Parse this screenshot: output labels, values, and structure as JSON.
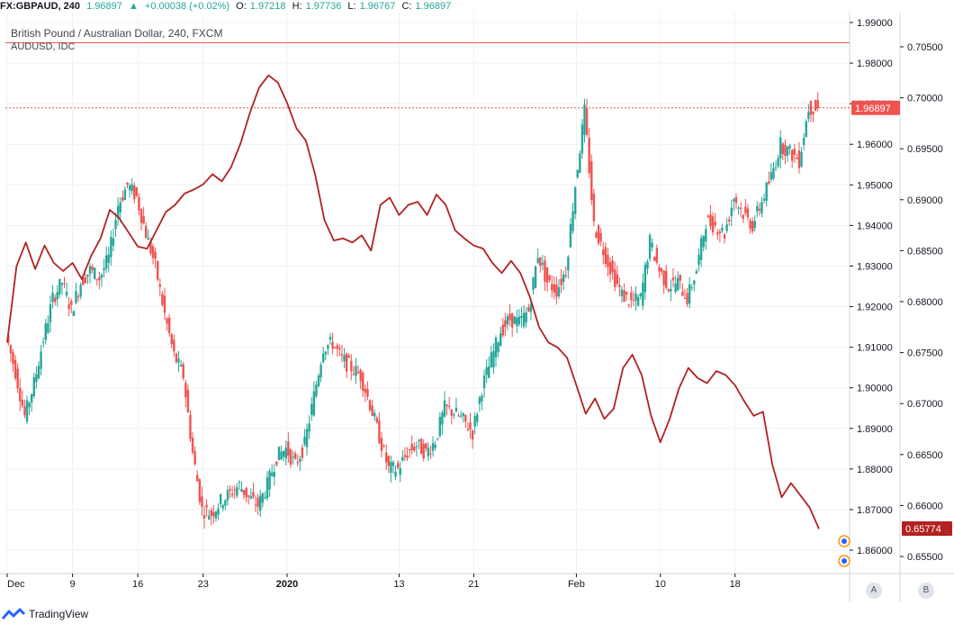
{
  "header": {
    "symbol": "FX:GBPAUD, 240",
    "last": "1.96897",
    "change_icon": "triangle-up-icon",
    "change": "+0.00038 (+0.02%)",
    "o_label": "O:",
    "o_value": "1.97218",
    "h_label": "H:",
    "h_value": "1.97736",
    "l_label": "L:",
    "l_value": "1.96767",
    "c_label": "C:",
    "c_value": "1.96897"
  },
  "legend": {
    "main_series": "British Pound / Australian Dollar, 240, FXCM",
    "overlay_series": "AUDUSD, IDC"
  },
  "footer": {
    "brand": "TradingView",
    "brand_icon": "tradingview-logo-icon"
  },
  "axis_buttons": {
    "auto": "A",
    "both": "B"
  },
  "colors": {
    "up": "#26a69a",
    "down": "#ef5350",
    "overlay": "#b22222",
    "price_tag": "#ef5350",
    "overlay_tag": "#b22222"
  },
  "chart_data": {
    "type": "candlestick",
    "x_tick_labels": [
      "Dec",
      "9",
      "16",
      "23",
      "2020",
      "13",
      "21",
      "Feb",
      "10",
      "18"
    ],
    "x_tick_dates": [
      "2019-12-02",
      "2019-12-09",
      "2019-12-16",
      "2019-12-23",
      "2020-01-01",
      "2020-01-13",
      "2020-01-21",
      "2020-02-01",
      "2020-02-10",
      "2020-02-18"
    ],
    "right_axis_ticks": [
      "1.99000",
      "1.98000",
      "1.97000",
      "1.96000",
      "1.95000",
      "1.94000",
      "1.93000",
      "1.92000",
      "1.91000",
      "1.90000",
      "1.89000",
      "1.88000",
      "1.87000",
      "1.86000"
    ],
    "right_axis_ticks_2": [
      "0.70500",
      "0.70000",
      "0.69500",
      "0.69000",
      "0.68500",
      "0.68000",
      "0.67500",
      "0.67000",
      "0.66500",
      "0.66000",
      "0.65500"
    ],
    "last_price_label": "1.96897",
    "overlay_last_label": "0.65774",
    "gbpaud_ylim": [
      1.855,
      1.995
    ],
    "audusd_ylim": [
      0.652,
      0.7075
    ],
    "gbpaud_series": [
      {
        "x": "2019-12-02",
        "y": 1.913
      },
      {
        "x": "2019-12-03",
        "y": 1.904
      },
      {
        "x": "2019-12-04",
        "y": 1.893
      },
      {
        "x": "2019-12-05",
        "y": 1.901
      },
      {
        "x": "2019-12-06",
        "y": 1.912
      },
      {
        "x": "2019-12-07",
        "y": 1.922
      },
      {
        "x": "2019-12-08",
        "y": 1.926
      },
      {
        "x": "2019-12-09",
        "y": 1.919
      },
      {
        "x": "2019-12-10",
        "y": 1.926
      },
      {
        "x": "2019-12-11",
        "y": 1.929
      },
      {
        "x": "2019-12-12",
        "y": 1.927
      },
      {
        "x": "2019-12-13",
        "y": 1.932
      },
      {
        "x": "2019-12-14",
        "y": 1.945
      },
      {
        "x": "2019-12-15",
        "y": 1.95
      },
      {
        "x": "2019-12-16",
        "y": 1.947
      },
      {
        "x": "2019-12-17",
        "y": 1.938
      },
      {
        "x": "2019-12-18",
        "y": 1.93
      },
      {
        "x": "2019-12-19",
        "y": 1.918
      },
      {
        "x": "2019-12-20",
        "y": 1.908
      },
      {
        "x": "2019-12-21",
        "y": 1.903
      },
      {
        "x": "2019-12-22",
        "y": 1.884
      },
      {
        "x": "2019-12-23",
        "y": 1.87
      },
      {
        "x": "2019-12-24",
        "y": 1.869
      },
      {
        "x": "2019-12-25",
        "y": 1.872
      },
      {
        "x": "2019-12-26",
        "y": 1.874
      },
      {
        "x": "2019-12-27",
        "y": 1.876
      },
      {
        "x": "2019-12-28",
        "y": 1.873
      },
      {
        "x": "2019-12-29",
        "y": 1.871
      },
      {
        "x": "2019-12-30",
        "y": 1.876
      },
      {
        "x": "2019-12-31",
        "y": 1.883
      },
      {
        "x": "2020-01-01",
        "y": 1.885
      },
      {
        "x": "2020-01-02",
        "y": 1.881
      },
      {
        "x": "2020-01-03",
        "y": 1.886
      },
      {
        "x": "2020-01-04",
        "y": 1.898
      },
      {
        "x": "2020-01-05",
        "y": 1.91
      },
      {
        "x": "2020-01-06",
        "y": 1.911
      },
      {
        "x": "2020-01-07",
        "y": 1.907
      },
      {
        "x": "2020-01-08",
        "y": 1.905
      },
      {
        "x": "2020-01-09",
        "y": 1.903
      },
      {
        "x": "2020-01-10",
        "y": 1.896
      },
      {
        "x": "2020-01-11",
        "y": 1.888
      },
      {
        "x": "2020-01-12",
        "y": 1.88
      },
      {
        "x": "2020-01-13",
        "y": 1.88
      },
      {
        "x": "2020-01-14",
        "y": 1.884
      },
      {
        "x": "2020-01-15",
        "y": 1.886
      },
      {
        "x": "2020-01-16",
        "y": 1.884
      },
      {
        "x": "2020-01-17",
        "y": 1.887
      },
      {
        "x": "2020-01-18",
        "y": 1.895
      },
      {
        "x": "2020-01-19",
        "y": 1.894
      },
      {
        "x": "2020-01-20",
        "y": 1.892
      },
      {
        "x": "2020-01-21",
        "y": 1.889
      },
      {
        "x": "2020-01-22",
        "y": 1.9
      },
      {
        "x": "2020-01-23",
        "y": 1.907
      },
      {
        "x": "2020-01-24",
        "y": 1.914
      },
      {
        "x": "2020-01-25",
        "y": 1.917
      },
      {
        "x": "2020-01-26",
        "y": 1.916
      },
      {
        "x": "2020-01-27",
        "y": 1.919
      },
      {
        "x": "2020-01-28",
        "y": 1.933
      },
      {
        "x": "2020-01-29",
        "y": 1.926
      },
      {
        "x": "2020-01-30",
        "y": 1.924
      },
      {
        "x": "2020-01-31",
        "y": 1.929
      },
      {
        "x": "2020-02-01",
        "y": 1.95
      },
      {
        "x": "2020-02-02",
        "y": 1.968
      },
      {
        "x": "2020-02-03",
        "y": 1.94
      },
      {
        "x": "2020-02-04",
        "y": 1.934
      },
      {
        "x": "2020-02-05",
        "y": 1.928
      },
      {
        "x": "2020-02-06",
        "y": 1.923
      },
      {
        "x": "2020-02-07",
        "y": 1.921
      },
      {
        "x": "2020-02-08",
        "y": 1.922
      },
      {
        "x": "2020-02-09",
        "y": 1.936
      },
      {
        "x": "2020-02-10",
        "y": 1.929
      },
      {
        "x": "2020-02-11",
        "y": 1.925
      },
      {
        "x": "2020-02-12",
        "y": 1.926
      },
      {
        "x": "2020-02-13",
        "y": 1.922
      },
      {
        "x": "2020-02-14",
        "y": 1.929
      },
      {
        "x": "2020-02-15",
        "y": 1.941
      },
      {
        "x": "2020-02-16",
        "y": 1.94
      },
      {
        "x": "2020-02-17",
        "y": 1.938
      },
      {
        "x": "2020-02-18",
        "y": 1.947
      },
      {
        "x": "2020-02-19",
        "y": 1.943
      },
      {
        "x": "2020-02-20",
        "y": 1.94
      },
      {
        "x": "2020-02-21",
        "y": 1.946
      },
      {
        "x": "2020-02-22",
        "y": 1.952
      },
      {
        "x": "2020-02-23",
        "y": 1.96
      },
      {
        "x": "2020-02-24",
        "y": 1.958
      },
      {
        "x": "2020-02-25",
        "y": 1.956
      },
      {
        "x": "2020-02-26",
        "y": 1.969
      },
      {
        "x": "2020-02-27",
        "y": 1.969
      }
    ],
    "audusd_series": [
      {
        "x": "2019-12-02",
        "y": 0.676
      },
      {
        "x": "2019-12-03",
        "y": 0.6835
      },
      {
        "x": "2019-12-04",
        "y": 0.6858
      },
      {
        "x": "2019-12-05",
        "y": 0.6832
      },
      {
        "x": "2019-12-06",
        "y": 0.6855
      },
      {
        "x": "2019-12-07",
        "y": 0.6838
      },
      {
        "x": "2019-12-08",
        "y": 0.683
      },
      {
        "x": "2019-12-09",
        "y": 0.6838
      },
      {
        "x": "2019-12-10",
        "y": 0.6822
      },
      {
        "x": "2019-12-11",
        "y": 0.6845
      },
      {
        "x": "2019-12-12",
        "y": 0.6862
      },
      {
        "x": "2019-12-13",
        "y": 0.689
      },
      {
        "x": "2019-12-14",
        "y": 0.6882
      },
      {
        "x": "2019-12-15",
        "y": 0.6868
      },
      {
        "x": "2019-12-16",
        "y": 0.6854
      },
      {
        "x": "2019-12-17",
        "y": 0.6852
      },
      {
        "x": "2019-12-18",
        "y": 0.687
      },
      {
        "x": "2019-12-19",
        "y": 0.6888
      },
      {
        "x": "2019-12-20",
        "y": 0.6895
      },
      {
        "x": "2019-12-21",
        "y": 0.6906
      },
      {
        "x": "2019-12-22",
        "y": 0.691
      },
      {
        "x": "2019-12-23",
        "y": 0.6915
      },
      {
        "x": "2019-12-24",
        "y": 0.6925
      },
      {
        "x": "2019-12-25",
        "y": 0.6918
      },
      {
        "x": "2019-12-26",
        "y": 0.6932
      },
      {
        "x": "2019-12-27",
        "y": 0.6955
      },
      {
        "x": "2019-12-28",
        "y": 0.6985
      },
      {
        "x": "2019-12-29",
        "y": 0.701
      },
      {
        "x": "2019-12-30",
        "y": 0.7022
      },
      {
        "x": "2019-12-31",
        "y": 0.7015
      },
      {
        "x": "2020-01-01",
        "y": 0.6995
      },
      {
        "x": "2020-01-02",
        "y": 0.697
      },
      {
        "x": "2020-01-03",
        "y": 0.6958
      },
      {
        "x": "2020-01-04",
        "y": 0.6925
      },
      {
        "x": "2020-01-05",
        "y": 0.688
      },
      {
        "x": "2020-01-06",
        "y": 0.686
      },
      {
        "x": "2020-01-07",
        "y": 0.6862
      },
      {
        "x": "2020-01-08",
        "y": 0.6858
      },
      {
        "x": "2020-01-09",
        "y": 0.6865
      },
      {
        "x": "2020-01-10",
        "y": 0.685
      },
      {
        "x": "2020-01-11",
        "y": 0.6895
      },
      {
        "x": "2020-01-12",
        "y": 0.6902
      },
      {
        "x": "2020-01-13",
        "y": 0.6885
      },
      {
        "x": "2020-01-14",
        "y": 0.6895
      },
      {
        "x": "2020-01-15",
        "y": 0.6898
      },
      {
        "x": "2020-01-16",
        "y": 0.6885
      },
      {
        "x": "2020-01-17",
        "y": 0.6905
      },
      {
        "x": "2020-01-18",
        "y": 0.6895
      },
      {
        "x": "2020-01-19",
        "y": 0.687
      },
      {
        "x": "2020-01-20",
        "y": 0.6862
      },
      {
        "x": "2020-01-21",
        "y": 0.6855
      },
      {
        "x": "2020-01-22",
        "y": 0.6852
      },
      {
        "x": "2020-01-23",
        "y": 0.6838
      },
      {
        "x": "2020-01-24",
        "y": 0.6828
      },
      {
        "x": "2020-01-25",
        "y": 0.684
      },
      {
        "x": "2020-01-26",
        "y": 0.6828
      },
      {
        "x": "2020-01-27",
        "y": 0.6805
      },
      {
        "x": "2020-01-28",
        "y": 0.6775
      },
      {
        "x": "2020-01-29",
        "y": 0.676
      },
      {
        "x": "2020-01-30",
        "y": 0.6755
      },
      {
        "x": "2020-01-31",
        "y": 0.6745
      },
      {
        "x": "2020-02-01",
        "y": 0.6718
      },
      {
        "x": "2020-02-02",
        "y": 0.669
      },
      {
        "x": "2020-02-03",
        "y": 0.6705
      },
      {
        "x": "2020-02-04",
        "y": 0.6685
      },
      {
        "x": "2020-02-05",
        "y": 0.6695
      },
      {
        "x": "2020-02-06",
        "y": 0.6735
      },
      {
        "x": "2020-02-07",
        "y": 0.6748
      },
      {
        "x": "2020-02-08",
        "y": 0.6728
      },
      {
        "x": "2020-02-09",
        "y": 0.6688
      },
      {
        "x": "2020-02-10",
        "y": 0.6662
      },
      {
        "x": "2020-02-11",
        "y": 0.6685
      },
      {
        "x": "2020-02-12",
        "y": 0.6715
      },
      {
        "x": "2020-02-13",
        "y": 0.6735
      },
      {
        "x": "2020-02-14",
        "y": 0.6725
      },
      {
        "x": "2020-02-15",
        "y": 0.672
      },
      {
        "x": "2020-02-16",
        "y": 0.6732
      },
      {
        "x": "2020-02-17",
        "y": 0.6728
      },
      {
        "x": "2020-02-18",
        "y": 0.6718
      },
      {
        "x": "2020-02-19",
        "y": 0.6702
      },
      {
        "x": "2020-02-20",
        "y": 0.6688
      },
      {
        "x": "2020-02-21",
        "y": 0.6692
      },
      {
        "x": "2020-02-22",
        "y": 0.664
      },
      {
        "x": "2020-02-23",
        "y": 0.6608
      },
      {
        "x": "2020-02-24",
        "y": 0.6622
      },
      {
        "x": "2020-02-25",
        "y": 0.661
      },
      {
        "x": "2020-02-26",
        "y": 0.6598
      },
      {
        "x": "2020-02-27",
        "y": 0.6577
      }
    ],
    "horizontal_lines": [
      {
        "value": 1.985,
        "color": "#ef5350",
        "style": "solid"
      },
      {
        "value": 1.96897,
        "color": "#ef5350",
        "style": "dotted"
      }
    ],
    "grid": true,
    "legend_position": "top-left"
  }
}
